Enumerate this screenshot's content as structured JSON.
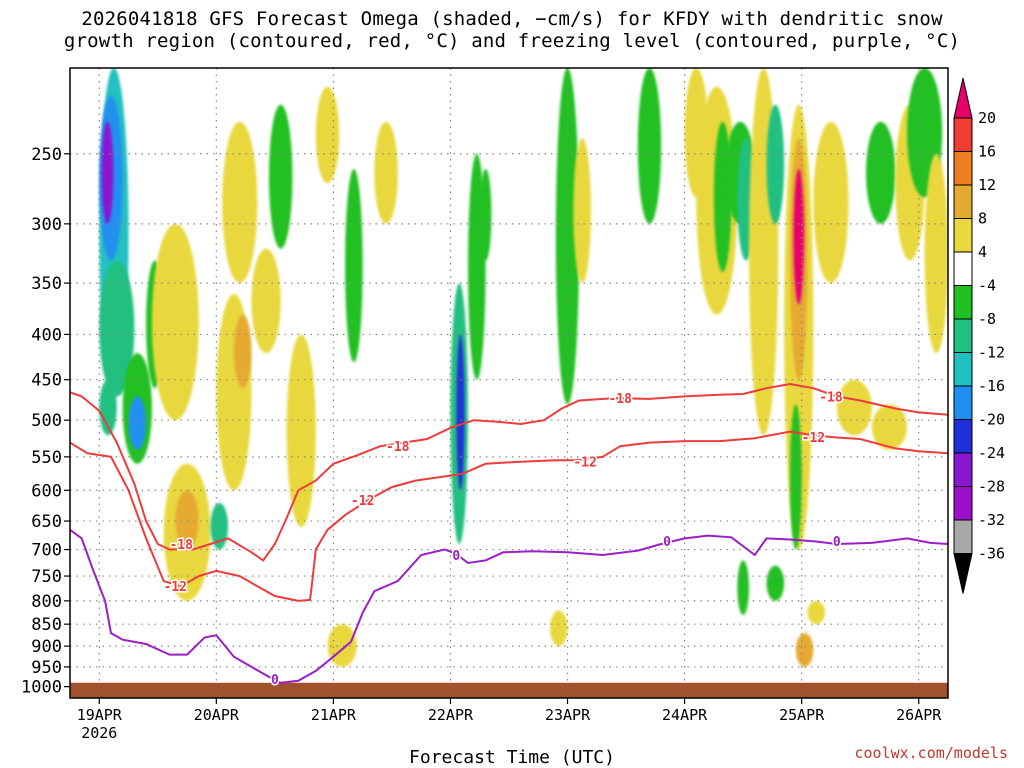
{
  "title_line1": "2026041818 GFS Forecast Omega (shaded, −cm/s) for KFDY with dendritic snow",
  "title_line2": "growth region (contoured, red, °C) and freezing level (contoured, purple, °C)",
  "credit": "coolwx.com/models",
  "colors": {
    "dgz_contour": "#ee3b3b",
    "freezing_contour": "#9b1ec8",
    "ground": "#a0522d",
    "grid": "#888888"
  },
  "chart_data": {
    "type": "heatmap",
    "xlabel": "Forecast Time (UTC)",
    "ylabel": "",
    "y_scale": "log-pressure",
    "ylim_hPa": [
      1030,
      200
    ],
    "y_ticks": [
      250,
      300,
      350,
      400,
      450,
      500,
      550,
      600,
      650,
      700,
      750,
      800,
      850,
      900,
      950,
      1000
    ],
    "x_ticks": [
      {
        "day": 19,
        "label": "19APR",
        "sub": "2026"
      },
      {
        "day": 20,
        "label": "20APR",
        "sub": ""
      },
      {
        "day": 21,
        "label": "21APR",
        "sub": ""
      },
      {
        "day": 22,
        "label": "22APR",
        "sub": ""
      },
      {
        "day": 23,
        "label": "23APR",
        "sub": ""
      },
      {
        "day": 24,
        "label": "24APR",
        "sub": ""
      },
      {
        "day": 25,
        "label": "25APR",
        "sub": ""
      },
      {
        "day": 26,
        "label": "26APR",
        "sub": ""
      }
    ],
    "xlim_day": [
      18.75,
      26.25
    ],
    "colorbar": {
      "labels": [
        "20",
        "16",
        "12",
        "8",
        "4",
        "-4",
        "-8",
        "-12",
        "-16",
        "-20",
        "-24",
        "-28",
        "-32",
        "-36"
      ],
      "colors": [
        "#e8006a",
        "#f03c32",
        "#ee7e22",
        "#e6aa30",
        "#e8d83e",
        "#ffffff",
        "#20c020",
        "#20c080",
        "#20c0c0",
        "#2090f0",
        "#2030d8",
        "#8a18d0",
        "#9b10c8",
        "#a8a8a8",
        "#000000"
      ]
    },
    "contours": [
      {
        "name": "-18",
        "label": "-18",
        "color": "#ee3b3b",
        "points": [
          [
            18.75,
            465
          ],
          [
            18.85,
            470
          ],
          [
            19.0,
            488
          ],
          [
            19.15,
            530
          ],
          [
            19.3,
            590
          ],
          [
            19.4,
            650
          ],
          [
            19.5,
            690
          ],
          [
            19.6,
            700
          ],
          [
            19.8,
            700
          ],
          [
            19.95,
            690
          ],
          [
            20.1,
            680
          ],
          [
            20.3,
            705
          ],
          [
            20.4,
            720
          ],
          [
            20.5,
            690
          ],
          [
            20.6,
            645
          ],
          [
            20.7,
            600
          ],
          [
            20.85,
            585
          ],
          [
            21.0,
            560
          ],
          [
            21.2,
            548
          ],
          [
            21.4,
            535
          ],
          [
            21.6,
            530
          ],
          [
            21.8,
            525
          ],
          [
            22.0,
            510
          ],
          [
            22.2,
            500
          ],
          [
            22.4,
            502
          ],
          [
            22.6,
            505
          ],
          [
            22.8,
            500
          ],
          [
            22.95,
            485
          ],
          [
            23.1,
            475
          ],
          [
            23.4,
            472
          ],
          [
            23.7,
            473
          ],
          [
            24.0,
            470
          ],
          [
            24.3,
            468
          ],
          [
            24.5,
            467
          ],
          [
            24.7,
            460
          ],
          [
            24.9,
            455
          ],
          [
            25.1,
            460
          ],
          [
            25.3,
            470
          ],
          [
            25.5,
            475
          ],
          [
            25.8,
            485
          ],
          [
            26.0,
            490
          ],
          [
            26.25,
            493
          ]
        ],
        "labels_at": [
          [
            19.7,
            690
          ],
          [
            21.55,
            535
          ],
          [
            23.45,
            472
          ],
          [
            25.25,
            470
          ]
        ]
      },
      {
        "name": "-12",
        "label": "-12",
        "color": "#ee3b3b",
        "points": [
          [
            18.75,
            530
          ],
          [
            18.9,
            545
          ],
          [
            19.1,
            550
          ],
          [
            19.25,
            600
          ],
          [
            19.4,
            680
          ],
          [
            19.55,
            760
          ],
          [
            19.7,
            770
          ],
          [
            19.85,
            750
          ],
          [
            20.0,
            740
          ],
          [
            20.2,
            750
          ],
          [
            20.35,
            770
          ],
          [
            20.5,
            790
          ],
          [
            20.7,
            800
          ],
          [
            20.8,
            798
          ],
          [
            20.82,
            760
          ],
          [
            20.85,
            700
          ],
          [
            20.95,
            665
          ],
          [
            21.1,
            640
          ],
          [
            21.3,
            615
          ],
          [
            21.5,
            595
          ],
          [
            21.7,
            585
          ],
          [
            21.9,
            580
          ],
          [
            22.1,
            575
          ],
          [
            22.3,
            560
          ],
          [
            22.6,
            557
          ],
          [
            22.9,
            555
          ],
          [
            23.1,
            555
          ],
          [
            23.3,
            550
          ],
          [
            23.45,
            535
          ],
          [
            23.7,
            530
          ],
          [
            24.0,
            528
          ],
          [
            24.3,
            528
          ],
          [
            24.6,
            524
          ],
          [
            24.9,
            515
          ],
          [
            25.1,
            520
          ],
          [
            25.3,
            523
          ],
          [
            25.5,
            525
          ],
          [
            25.8,
            538
          ],
          [
            26.0,
            542
          ],
          [
            26.25,
            545
          ]
        ],
        "labels_at": [
          [
            19.65,
            770
          ],
          [
            21.25,
            615
          ],
          [
            23.15,
            557
          ],
          [
            25.1,
            522
          ]
        ]
      },
      {
        "name": "0",
        "label": "0",
        "color": "#9b1ec8",
        "points": [
          [
            18.75,
            665
          ],
          [
            18.85,
            680
          ],
          [
            18.95,
            740
          ],
          [
            19.05,
            800
          ],
          [
            19.1,
            870
          ],
          [
            19.2,
            885
          ],
          [
            19.4,
            895
          ],
          [
            19.6,
            920
          ],
          [
            19.75,
            920
          ],
          [
            19.9,
            880
          ],
          [
            20.0,
            875
          ],
          [
            20.15,
            925
          ],
          [
            20.3,
            950
          ],
          [
            20.45,
            975
          ],
          [
            20.55,
            990
          ],
          [
            20.7,
            985
          ],
          [
            20.85,
            960
          ],
          [
            21.0,
            925
          ],
          [
            21.15,
            890
          ],
          [
            21.25,
            825
          ],
          [
            21.35,
            780
          ],
          [
            21.55,
            760
          ],
          [
            21.75,
            710
          ],
          [
            21.95,
            700
          ],
          [
            22.05,
            708
          ],
          [
            22.15,
            725
          ],
          [
            22.3,
            720
          ],
          [
            22.45,
            705
          ],
          [
            22.7,
            703
          ],
          [
            23.0,
            705
          ],
          [
            23.3,
            710
          ],
          [
            23.6,
            702
          ],
          [
            23.8,
            690
          ],
          [
            24.0,
            680
          ],
          [
            24.2,
            675
          ],
          [
            24.4,
            678
          ],
          [
            24.6,
            710
          ],
          [
            24.7,
            680
          ],
          [
            24.9,
            682
          ],
          [
            25.1,
            685
          ],
          [
            25.3,
            690
          ],
          [
            25.6,
            688
          ],
          [
            25.9,
            680
          ],
          [
            26.1,
            688
          ],
          [
            26.25,
            690
          ]
        ],
        "labels_at": [
          [
            20.5,
            980
          ],
          [
            22.05,
            710
          ],
          [
            23.85,
            685
          ],
          [
            25.3,
            685
          ]
        ]
      }
    ]
  }
}
